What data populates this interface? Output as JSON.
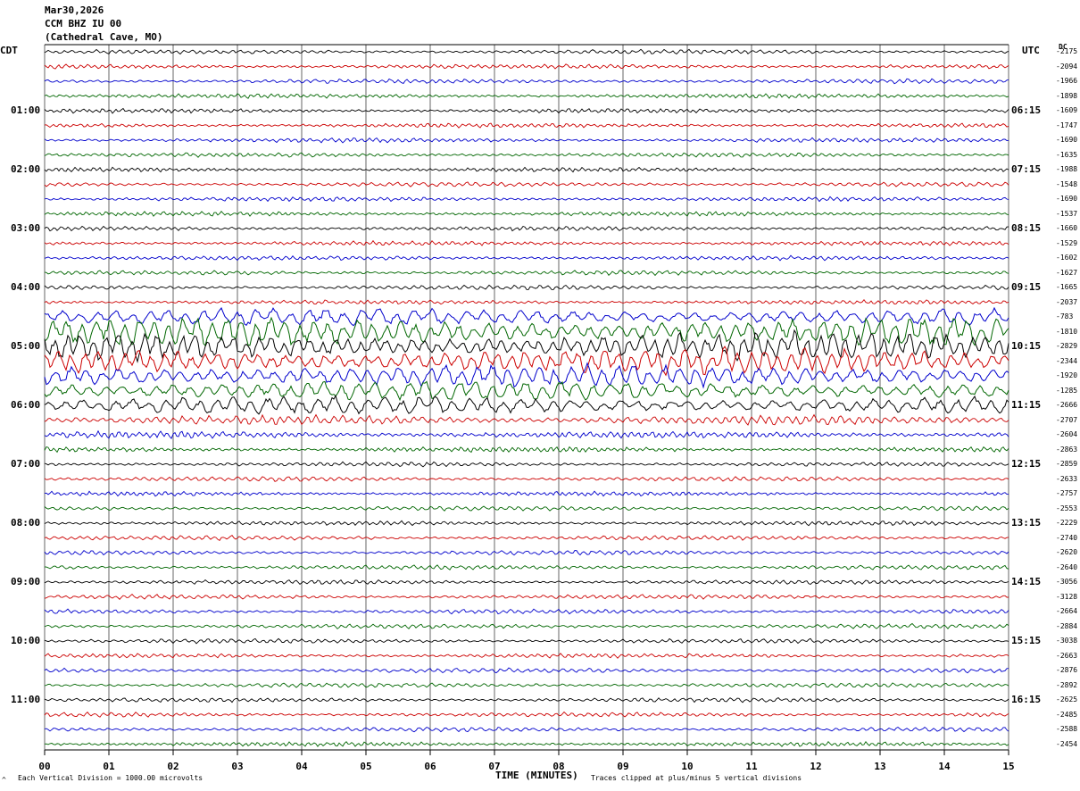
{
  "header": {
    "date": "Mar30,2026",
    "station": "CCM BHZ IU 00",
    "location": "(Cathedral Cave, MO)"
  },
  "left_tz": "CDT",
  "right_tz": "UTC",
  "dc_label": "DC",
  "footer": {
    "scale": "Each Vertical Division = 1000.00 microvolts",
    "xaxis_title": "TIME (MINUTES)",
    "clip_note": "Traces clipped at plus/minus 5 vertical divisions",
    "corner_mark": "^"
  },
  "colors": {
    "c0": "#000000",
    "c1": "#cc0000",
    "c2": "#0000cc",
    "c3": "#006600",
    "grid": "#000000"
  },
  "chart_data": {
    "type": "line",
    "title": "",
    "xlabel": "TIME (MINUTES)",
    "xlim": [
      0,
      15
    ],
    "x_ticks": [
      "00",
      "01",
      "02",
      "03",
      "04",
      "05",
      "06",
      "07",
      "08",
      "09",
      "10",
      "11",
      "12",
      "13",
      "14",
      "15"
    ],
    "left_hour_labels": [
      "01:00",
      "02:00",
      "03:00",
      "04:00",
      "05:00",
      "06:00",
      "07:00",
      "08:00",
      "09:00",
      "10:00",
      "11:00"
    ],
    "right_hour_labels": [
      "06:15",
      "07:15",
      "08:15",
      "09:15",
      "10:15",
      "11:15",
      "12:15",
      "13:15",
      "14:15",
      "15:15",
      "16:15"
    ],
    "trace_count": 48,
    "trace_colors": [
      "#000000",
      "#cc0000",
      "#0000cc",
      "#006600"
    ],
    "trace_amplitude": [
      1,
      1,
      1,
      1,
      1,
      1,
      1,
      1,
      1,
      1,
      1,
      1,
      1,
      1,
      1,
      1,
      1,
      1,
      4.5,
      7,
      7,
      6.5,
      6,
      5,
      4.5,
      2,
      1.5,
      1.2,
      1,
      1,
      1,
      1,
      1,
      1,
      1,
      1,
      1,
      1,
      1,
      1,
      1,
      1,
      1,
      1,
      1,
      1,
      1,
      1
    ],
    "dc_offsets": [
      "-2175",
      "-2094",
      "-1966",
      "-1898",
      "-1609",
      "-1747",
      "-1690",
      "-1635",
      "-1988",
      "-1548",
      "-1690",
      "-1537",
      "-1660",
      "-1529",
      "-1602",
      "-1627",
      "-1665",
      "-2037",
      "-783",
      "-1810",
      "-2829",
      "-2344",
      "-1920",
      "-1285",
      "-2666",
      "-2707",
      "-2604",
      "-2863",
      "-2859",
      "-2633",
      "-2757",
      "-2553",
      "-2229",
      "-2740",
      "-2620",
      "-2640",
      "-3056",
      "-3128",
      "-2664",
      "-2884",
      "-3038",
      "-2663",
      "-2876",
      "-2892",
      "-2625",
      "-2485",
      "-2588",
      "-2454"
    ]
  }
}
